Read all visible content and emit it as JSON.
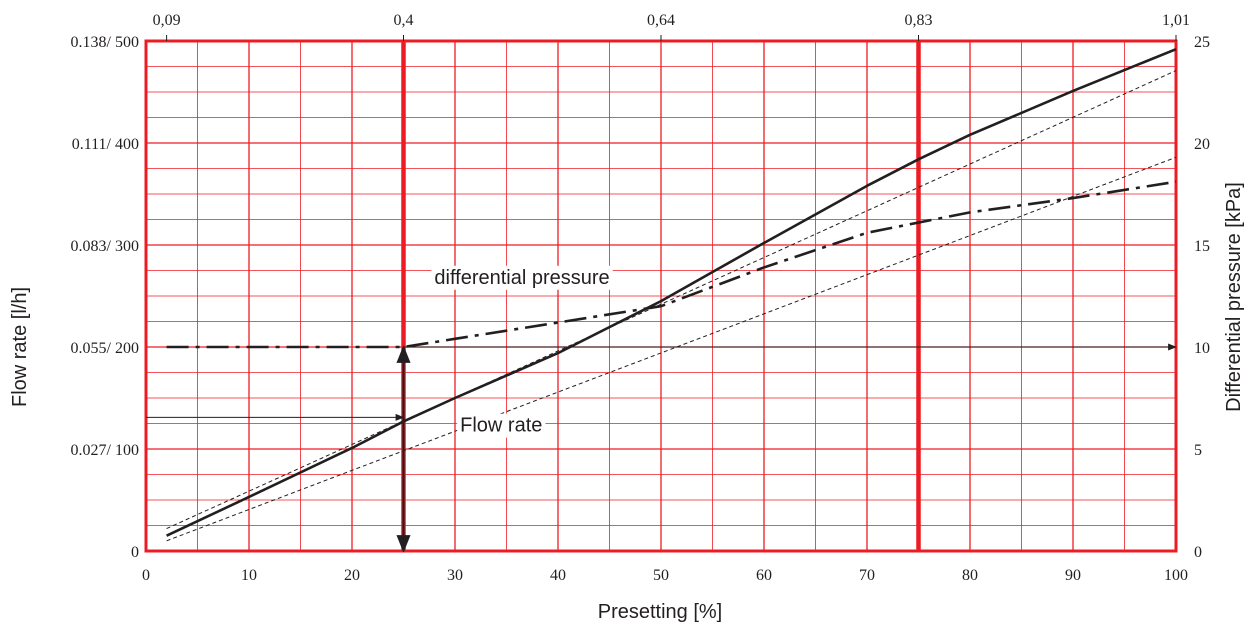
{
  "chart_data": {
    "type": "line",
    "xlabel": "Presetting [%]",
    "ylabel_left": "Flow rate [l/h]",
    "ylabel_right": "Differential pressure [kPa]",
    "xlim": [
      0,
      100
    ],
    "ylim_left": [
      0,
      500
    ],
    "ylim_right": [
      0,
      25
    ],
    "x_ticks": [
      "0",
      "10",
      "20",
      "30",
      "40",
      "50",
      "60",
      "70",
      "80",
      "90",
      "100"
    ],
    "y_left_ticks": [
      {
        "value": 0,
        "label": "0"
      },
      {
        "value": 100,
        "label": "0.027/ 100"
      },
      {
        "value": 200,
        "label": "0.055/ 200"
      },
      {
        "value": 300,
        "label": "0.083/ 300"
      },
      {
        "value": 400,
        "label": "0.111/ 400"
      },
      {
        "value": 500,
        "label": "0.138/ 500"
      }
    ],
    "y_right_ticks": [
      {
        "value": 0,
        "label": "0"
      },
      {
        "value": 5,
        "label": "5"
      },
      {
        "value": 10,
        "label": "10"
      },
      {
        "value": 15,
        "label": "15"
      },
      {
        "value": 20,
        "label": "20"
      },
      {
        "value": 25,
        "label": "25"
      }
    ],
    "top_ticks": [
      {
        "x": 2,
        "label": "0,09"
      },
      {
        "x": 25,
        "label": "0,4"
      },
      {
        "x": 50,
        "label": "0,64"
      },
      {
        "x": 75,
        "label": "0,83"
      },
      {
        "x": 100,
        "label": "1,01"
      }
    ],
    "highlight_x": [
      25,
      75
    ],
    "grid": true,
    "series": [
      {
        "name": "Flow rate",
        "axis": "left",
        "style": "solid",
        "x": [
          2,
          10,
          20,
          25,
          30,
          40,
          50,
          60,
          70,
          75,
          80,
          90,
          100
        ],
        "y": [
          15,
          53,
          101,
          127,
          150,
          194,
          245,
          302,
          358,
          384,
          408,
          451,
          492
        ]
      },
      {
        "name": "",
        "axis": "left",
        "style": "dotted-upper",
        "x": [
          2,
          100
        ],
        "y": [
          22,
          471
        ]
      },
      {
        "name": "",
        "axis": "left",
        "style": "dotted-lower",
        "x": [
          2,
          100
        ],
        "y": [
          10,
          386
        ]
      },
      {
        "name": "differential pressure",
        "axis": "right",
        "style": "dash-dot",
        "x": [
          2,
          25,
          30,
          40,
          50,
          60,
          70,
          75,
          80,
          90,
          100
        ],
        "y": [
          10,
          10,
          10.4,
          11.2,
          12.0,
          13.9,
          15.6,
          16.1,
          16.6,
          17.3,
          18.1
        ]
      }
    ],
    "annotations": [
      {
        "text": "differential pressure",
        "x": 28,
        "y_right": 13.1
      },
      {
        "text": "Flow rate",
        "x": 30.5,
        "y_left": 117
      }
    ],
    "arrows": [
      {
        "from": [
          0,
          131
        ],
        "to": [
          25,
          131
        ],
        "axis": "left"
      },
      {
        "from": [
          25,
          200
        ],
        "to": [
          25,
          0
        ],
        "axis": "left",
        "double": true
      },
      {
        "from": [
          25,
          10
        ],
        "to": [
          100,
          10
        ],
        "axis": "right"
      }
    ],
    "colors": {
      "grid": "#ed1c24",
      "line": "#231f20"
    }
  }
}
